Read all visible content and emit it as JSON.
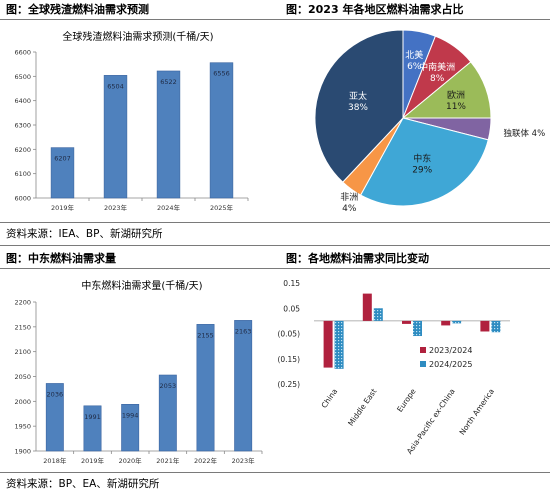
{
  "figures": {
    "top_left_caption": "图：全球残渣燃料油需求预测",
    "top_right_caption": "图：2023 年各地区燃料油需求占比",
    "bottom_left_caption": "图：中东燃料油需求量",
    "bottom_right_caption": "图：各地燃料油需求同比变动",
    "top_source": "资料来源：IEA、BP、新湖研究所",
    "bottom_source": "资料来源：BP、EA、新湖研究所"
  },
  "colors": {
    "bar_blue": "#4f81bd",
    "bar_border": "#3a64a0",
    "crimson": "#b0213e",
    "teal": "#2e8cc1",
    "pie_north_america": "#4472c4",
    "pie_middle_south_america": "#c0394b",
    "pie_europe": "#9bbb59",
    "pie_cis": "#8064a2",
    "pie_middle_east": "#3fa7d6",
    "pie_africa": "#f79646",
    "pie_asia_pacific": "#2a4a72",
    "rule": "#7a7a7a"
  },
  "chart_data": [
    {
      "id": "global",
      "type": "bar",
      "title": "全球残渣燃料油需求预测(千桶/天)",
      "categories": [
        "2019年",
        "2023年",
        "2024年",
        "2025年"
      ],
      "values": [
        6207,
        6504,
        6522,
        6556
      ],
      "ylim": [
        6000,
        6600
      ],
      "yticks": [
        "6000",
        "6100",
        "6200",
        "6300",
        "6400",
        "6500",
        "6600"
      ],
      "grid": false
    },
    {
      "id": "share",
      "type": "pie",
      "slices": [
        {
          "label": "北美",
          "value": 6,
          "pct": "6%"
        },
        {
          "label": "中南美洲",
          "value": 8,
          "pct": "8%"
        },
        {
          "label": "欧洲",
          "value": 11,
          "pct": "11%"
        },
        {
          "label": "独联体",
          "value": 4,
          "pct": "4%"
        },
        {
          "label": "中东",
          "value": 29,
          "pct": "29%"
        },
        {
          "label": "非洲",
          "value": 4,
          "pct": "4%"
        },
        {
          "label": "亚太",
          "value": 38,
          "pct": "38%"
        }
      ]
    },
    {
      "id": "middle_east",
      "type": "bar",
      "title": "中东燃料油需求量(千桶/天)",
      "categories": [
        "2018年",
        "2019年",
        "2020年",
        "2021年",
        "2022年",
        "2023年"
      ],
      "values": [
        2036,
        1991,
        1994,
        2053,
        2155,
        2163
      ],
      "ylim": [
        1900,
        2200
      ],
      "yticks": [
        "1900",
        "1950",
        "2000",
        "2050",
        "2100",
        "2150",
        "2200"
      ],
      "grid": false
    },
    {
      "id": "yoy",
      "type": "bar",
      "categories": [
        "China",
        "Middle East",
        "Europe",
        "Asia-Pacific ex-China",
        "North America"
      ],
      "series": [
        {
          "name": "2023/2024",
          "values": [
            -0.185,
            0.108,
            -0.012,
            -0.018,
            -0.042
          ]
        },
        {
          "name": "2024/2025",
          "values": [
            -0.19,
            0.05,
            -0.06,
            -0.01,
            -0.045
          ]
        }
      ],
      "ylim": [
        -0.25,
        0.15
      ],
      "yticks": [
        "(0.25)",
        "(0.15)",
        "(0.05)",
        "0.05",
        "0.15"
      ],
      "legend": "right",
      "grid": false
    }
  ]
}
